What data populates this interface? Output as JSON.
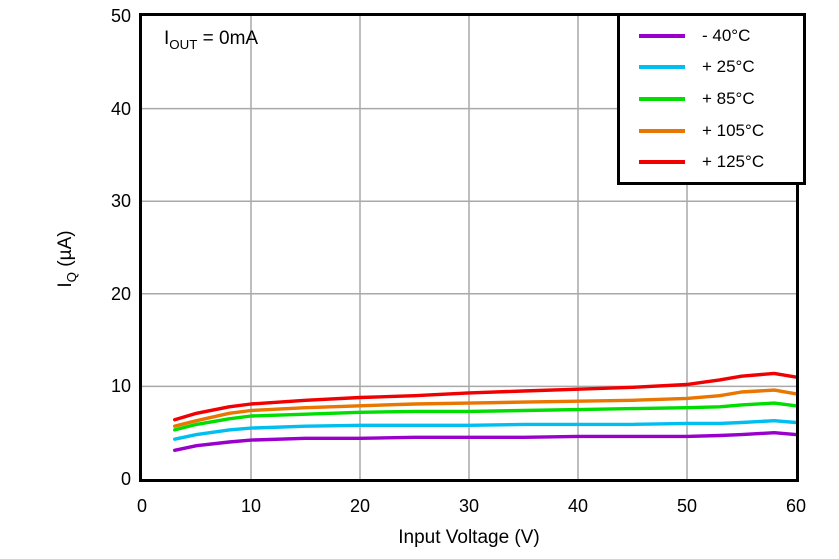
{
  "chart_data": {
    "type": "line",
    "xlabel": "Input Voltage (V)",
    "ylabel": {
      "main": "I",
      "sub": "Q",
      "unit": " (µA)"
    },
    "annotation": {
      "main": "I",
      "sub": "OUT",
      "rest": " = 0mA"
    },
    "xlim": [
      0,
      60
    ],
    "ylim": [
      0,
      50
    ],
    "xticks": [
      "0",
      "10",
      "20",
      "30",
      "40",
      "50",
      "60"
    ],
    "yticks": [
      "0",
      "10",
      "20",
      "30",
      "40",
      "50"
    ],
    "grid": true,
    "legend_position": "top-right",
    "x": [
      3,
      5,
      8,
      10,
      15,
      20,
      25,
      30,
      35,
      40,
      45,
      50,
      53,
      55,
      58,
      60
    ],
    "series": [
      {
        "name": "- 40°C",
        "color": "#9900CC",
        "values": [
          3.1,
          3.6,
          4.0,
          4.2,
          4.4,
          4.4,
          4.5,
          4.5,
          4.5,
          4.6,
          4.6,
          4.6,
          4.7,
          4.8,
          5.0,
          4.8
        ]
      },
      {
        "name": "+ 25°C",
        "color": "#00BFF0",
        "values": [
          4.3,
          4.8,
          5.3,
          5.5,
          5.7,
          5.8,
          5.8,
          5.8,
          5.9,
          5.9,
          5.9,
          6.0,
          6.0,
          6.1,
          6.3,
          6.1
        ]
      },
      {
        "name": "+ 85°C",
        "color": "#00DD00",
        "values": [
          5.3,
          5.9,
          6.5,
          6.8,
          7.0,
          7.2,
          7.3,
          7.3,
          7.4,
          7.5,
          7.6,
          7.7,
          7.8,
          8.0,
          8.2,
          7.9
        ]
      },
      {
        "name": "+ 105°C",
        "color": "#E87600",
        "values": [
          5.7,
          6.3,
          7.1,
          7.4,
          7.7,
          7.9,
          8.1,
          8.2,
          8.3,
          8.4,
          8.5,
          8.7,
          9.0,
          9.4,
          9.6,
          9.2
        ]
      },
      {
        "name": "+ 125°C",
        "color": "#F00000",
        "values": [
          6.4,
          7.1,
          7.8,
          8.1,
          8.5,
          8.8,
          9.0,
          9.3,
          9.5,
          9.7,
          9.9,
          10.2,
          10.7,
          11.1,
          11.4,
          11.0
        ]
      }
    ],
    "colors": {
      "grid": "#A9A9A9",
      "axis": "#000000"
    }
  }
}
